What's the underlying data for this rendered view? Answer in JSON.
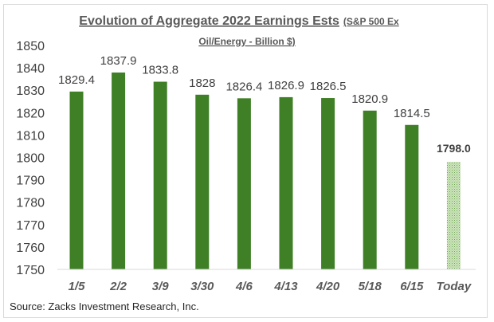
{
  "chart_data": {
    "type": "bar",
    "title": "Evolution of Aggregate 2022 Earnings Ests",
    "title_suffix_line1": "(S&P 500 Ex",
    "title_suffix_line2": "Oil/Energy - Billion $)",
    "categories": [
      "1/5",
      "2/2",
      "3/9",
      "3/30",
      "4/6",
      "4/13",
      "4/20",
      "5/18",
      "6/15",
      "Today"
    ],
    "values": [
      1829.4,
      1837.9,
      1833.8,
      1828,
      1826.4,
      1826.9,
      1826.5,
      1820.9,
      1814.5,
      1798.0
    ],
    "data_labels": [
      "1829.4",
      "1837.9",
      "1833.8",
      "1828",
      "1826.4",
      "1826.9",
      "1826.5",
      "1820.9",
      "1814.5",
      "1798.0"
    ],
    "ylim": [
      1750,
      1850
    ],
    "yticks": [
      1750,
      1760,
      1770,
      1780,
      1790,
      1800,
      1810,
      1820,
      1830,
      1840,
      1850
    ],
    "xlabel": "",
    "ylabel": "",
    "grid": false,
    "colors": {
      "bar": "#3f7f26",
      "highlight": "#a9d18e"
    }
  },
  "source": "Source: Zacks Investment Research, Inc."
}
